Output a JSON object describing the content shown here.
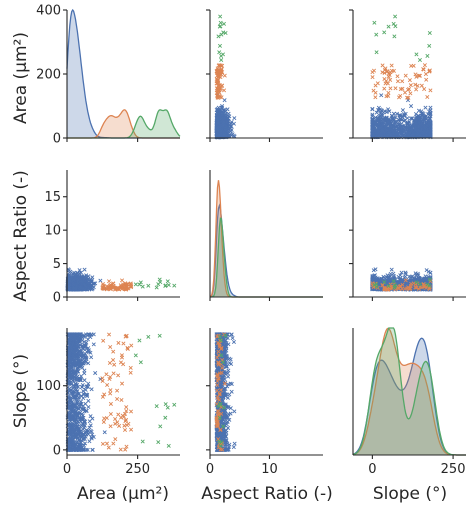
{
  "chart_data": {
    "type": "scatter",
    "subtype": "pairplot",
    "marker": "x",
    "variables": [
      "Area (µm²)",
      "Aspect Ratio (-)",
      "Slope (°)"
    ],
    "diagonal_title_labels": [
      "Area (µm$^2$)",
      "Aspect Ratio (-)",
      "Slope (°)"
    ],
    "axes": {
      "area": {
        "lim": [
          0,
          400
        ],
        "ticks": [
          0,
          200,
          400
        ],
        "tick_labels": [
          "0",
          "200",
          "400"
        ]
      },
      "area_x": {
        "lim": [
          0,
          400
        ],
        "ticks": [
          0,
          250
        ],
        "tick_labels": [
          "0",
          "250"
        ]
      },
      "aspect": {
        "lim": [
          0,
          19
        ],
        "ticks": [
          0,
          5,
          10,
          15
        ],
        "tick_labels": [
          "0",
          "5",
          "10",
          "15"
        ]
      },
      "aspect_x": {
        "lim": [
          0,
          19
        ],
        "ticks": [
          0,
          10
        ],
        "tick_labels": [
          "0",
          "10"
        ]
      },
      "slope": {
        "lim": [
          -8,
          190
        ],
        "ticks": [
          0,
          100
        ],
        "tick_labels": [
          "0",
          "100"
        ]
      },
      "slope_x": {
        "lim": [
          -60,
          290
        ],
        "ticks": [
          0,
          250
        ],
        "tick_labels": [
          "0",
          "250"
        ]
      }
    },
    "labels": {
      "ylabel_area": "Area (µm²)",
      "ylabel_aspect": "Aspect Ratio (-)",
      "ylabel_slope": "Slope (°)",
      "xlabel_area": "Area (µm²)",
      "xlabel_aspect": "Aspect Ratio (-)",
      "xlabel_slope": "Slope (°)"
    },
    "series": [
      {
        "color": "#4c72b0",
        "area_range": [
          0,
          130
        ],
        "area_kde_peak": 3,
        "aspect_range": [
          1,
          7
        ],
        "aspect_mode": 1.8,
        "slope_range": [
          0,
          180
        ],
        "slope_kde_modes": [
          25,
          155
        ]
      },
      {
        "color": "#dd8452",
        "area_range": [
          100,
          230
        ],
        "area_kde_peak": 175,
        "aspect_range": [
          1,
          4
        ],
        "aspect_mode": 1.7,
        "slope_range": [
          0,
          180
        ]
      },
      {
        "color": "#55a868",
        "area_range": [
          230,
          400
        ],
        "area_kde_peak": 310,
        "aspect_range": [
          1,
          3
        ],
        "aspect_mode": 2.0,
        "slope_range": [
          0,
          180
        ]
      }
    ],
    "grid": false,
    "legend": "none"
  }
}
